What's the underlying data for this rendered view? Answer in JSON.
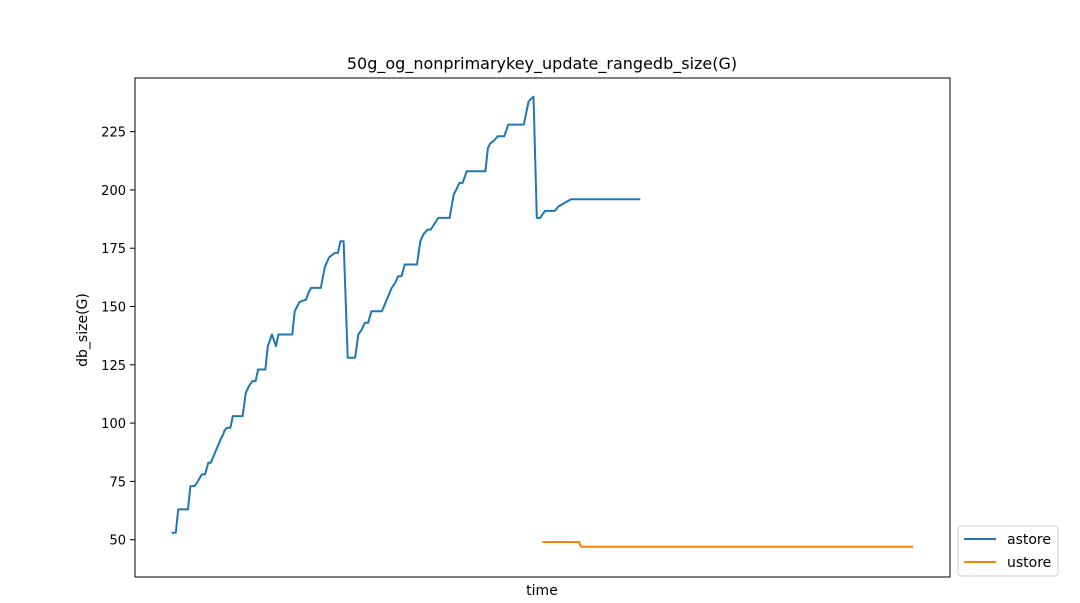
{
  "chart_data": {
    "type": "line",
    "title": "50g_og_nonprimarykey_update_rangedb_size(G)",
    "xlabel": "time",
    "ylabel": "db_size(G)",
    "xlim": [
      0,
      100
    ],
    "ylim": [
      34,
      248
    ],
    "yticks": [
      50,
      75,
      100,
      125,
      150,
      175,
      200,
      225
    ],
    "grid": false,
    "legend_position": "outside-right-bottom",
    "series": [
      {
        "name": "astore",
        "color": "#1f77b4",
        "x": [
          4.5,
          5.0,
          5.3,
          6.5,
          6.8,
          7.3,
          7.7,
          8.2,
          8.6,
          9.0,
          9.3,
          10.5,
          10.8,
          11.0,
          11.3,
          11.7,
          12.0,
          12.4,
          12.8,
          13.2,
          13.6,
          14.0,
          14.4,
          14.8,
          15.1,
          15.7,
          16.0,
          16.3,
          16.5,
          16.8,
          17.3,
          17.6,
          17.9,
          18.3,
          19.3,
          19.6,
          20.2,
          21.0,
          21.3,
          21.6,
          21.9,
          22.4,
          22.8,
          23.3,
          23.8,
          24.5,
          24.9,
          25.2,
          25.6,
          26.1,
          26.4,
          26.7,
          27.0,
          27.4,
          27.8,
          28.2,
          28.6,
          29.0,
          29.4,
          29.9,
          30.3,
          31.5,
          31.9,
          32.3,
          32.7,
          33.1,
          33.6,
          34.2,
          34.6,
          35.0,
          35.4,
          35.9,
          36.3,
          37.2,
          37.7,
          38.2,
          38.6,
          39.1,
          39.4,
          39.8,
          40.2,
          40.7,
          41.2,
          42.6,
          43.0,
          43.3,
          43.6,
          44.0,
          44.5,
          44.8,
          45.3,
          45.8,
          46.3,
          46.6,
          46.9,
          47.2,
          47.7,
          48.3,
          48.6,
          48.9,
          49.3,
          49.7,
          50.3,
          51.5,
          52.0,
          53.5,
          53.8,
          54.4,
          55.1,
          57.0,
          57.4,
          59.0,
          60.3,
          61.2,
          62.0
        ],
        "y": [
          53,
          53,
          63,
          63,
          73,
          73,
          75,
          78,
          78,
          83,
          83,
          93,
          95,
          97,
          98,
          98,
          103,
          103,
          103,
          103,
          113,
          116,
          118,
          118,
          123,
          123,
          123,
          133,
          135,
          138,
          133,
          138,
          138,
          138,
          138,
          148,
          152,
          153,
          156,
          158,
          158,
          158,
          158,
          167,
          171,
          173,
          173,
          178,
          178,
          128,
          128,
          128,
          128,
          138,
          140,
          143,
          143,
          148,
          148,
          148,
          148,
          158,
          160,
          163,
          163,
          168,
          168,
          168,
          168,
          178,
          181,
          183,
          183,
          188,
          188,
          188,
          188,
          198,
          200,
          203,
          203,
          208,
          208,
          208,
          208,
          218,
          220,
          221,
          223,
          223,
          223,
          228,
          228,
          228,
          228,
          228,
          228,
          238,
          239,
          240,
          188,
          188,
          191,
          191,
          193,
          196,
          196,
          196,
          196,
          196,
          196,
          196,
          196,
          196,
          196
        ]
      },
      {
        "name": "ustore",
        "color": "#ff7f0e",
        "x": [
          50.0,
          54.5,
          54.7,
          95.5
        ],
        "y": [
          49,
          49,
          47,
          47
        ]
      }
    ]
  }
}
